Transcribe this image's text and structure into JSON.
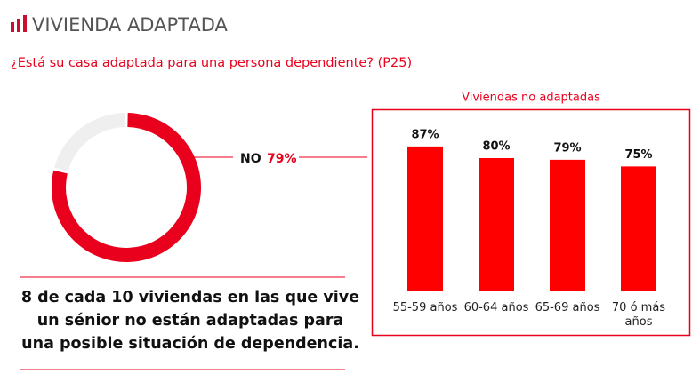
{
  "header": {
    "title": "VIVIENDA ADAPTADA",
    "question": "¿Está su casa adaptada para una persona dependiente? (P25)"
  },
  "statement": "8 de cada 10 viviendas en las que vive un sénior no están adaptadas para una posible situación de dependencia.",
  "chart_data": [
    {
      "type": "donut",
      "categories": [
        "NO",
        null
      ],
      "values": [
        79,
        21
      ],
      "value_labels": [
        "79%",
        null
      ],
      "colors": [
        "#e8001c",
        "#efefef"
      ]
    },
    {
      "type": "bar",
      "title": "Viviendas no adaptadas",
      "categories": [
        "55-59 años",
        "60-64 años",
        "65-69 años",
        "70 ó más años"
      ],
      "values": [
        87,
        80,
        79,
        75
      ],
      "value_labels": [
        "87%",
        "80%",
        "79%",
        "75%"
      ],
      "color": "#ff0000"
    }
  ]
}
